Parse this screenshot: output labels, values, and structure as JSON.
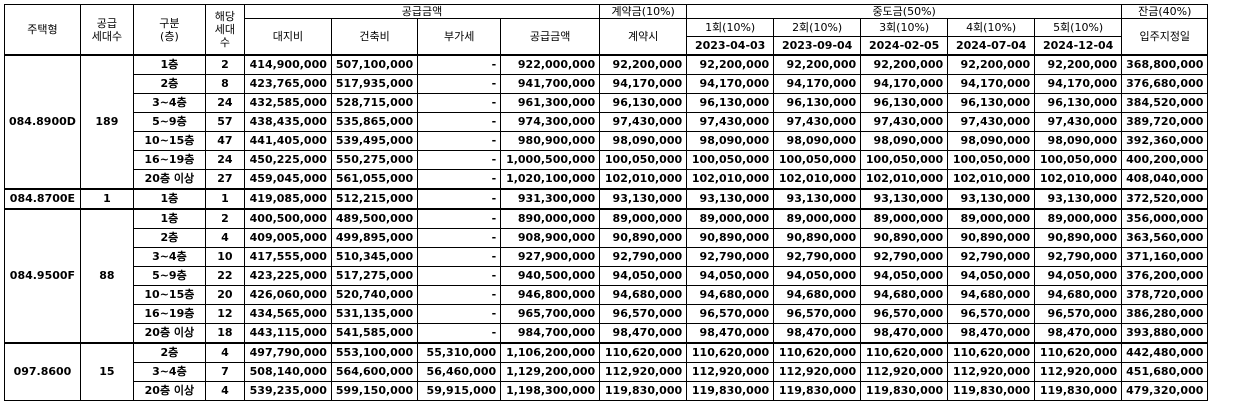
{
  "headers": {
    "type": "주택형",
    "units_line1": "공급",
    "units_line2": "세대수",
    "floor_line1": "구분",
    "floor_line2": "(층)",
    "count_line1": "해당",
    "count_line2": "세대수",
    "supply_group": "공급금액",
    "land": "대지비",
    "building": "건축비",
    "vat": "부가세",
    "supply_total": "공급금액",
    "deposit_group": "계약금(10%)",
    "deposit_at_contract": "계약시",
    "interim_group": "중도금(50%)",
    "interim": [
      {
        "label": "1회(10%)",
        "date": "2023-04-03"
      },
      {
        "label": "2회(10%)",
        "date": "2023-09-04"
      },
      {
        "label": "3회(10%)",
        "date": "2024-02-05"
      },
      {
        "label": "4회(10%)",
        "date": "2024-07-04"
      },
      {
        "label": "5회(10%)",
        "date": "2024-12-04"
      }
    ],
    "balance_group": "잔금(40%)",
    "balance_due": "입주지정일"
  },
  "groups": [
    {
      "type": "084.8900D",
      "units": "189",
      "rows": [
        {
          "floor": "1층",
          "count": "2",
          "land": "414,900,000",
          "building": "507,100,000",
          "vat": "-",
          "total": "922,000,000",
          "deposit": "92,200,000",
          "interim": [
            "92,200,000",
            "92,200,000",
            "92,200,000",
            "92,200,000",
            "92,200,000"
          ],
          "balance": "368,800,000"
        },
        {
          "floor": "2층",
          "count": "8",
          "land": "423,765,000",
          "building": "517,935,000",
          "vat": "-",
          "total": "941,700,000",
          "deposit": "94,170,000",
          "interim": [
            "94,170,000",
            "94,170,000",
            "94,170,000",
            "94,170,000",
            "94,170,000"
          ],
          "balance": "376,680,000"
        },
        {
          "floor": "3~4층",
          "count": "24",
          "land": "432,585,000",
          "building": "528,715,000",
          "vat": "-",
          "total": "961,300,000",
          "deposit": "96,130,000",
          "interim": [
            "96,130,000",
            "96,130,000",
            "96,130,000",
            "96,130,000",
            "96,130,000"
          ],
          "balance": "384,520,000"
        },
        {
          "floor": "5~9층",
          "count": "57",
          "land": "438,435,000",
          "building": "535,865,000",
          "vat": "-",
          "total": "974,300,000",
          "deposit": "97,430,000",
          "interim": [
            "97,430,000",
            "97,430,000",
            "97,430,000",
            "97,430,000",
            "97,430,000"
          ],
          "balance": "389,720,000"
        },
        {
          "floor": "10~15층",
          "count": "47",
          "land": "441,405,000",
          "building": "539,495,000",
          "vat": "-",
          "total": "980,900,000",
          "deposit": "98,090,000",
          "interim": [
            "98,090,000",
            "98,090,000",
            "98,090,000",
            "98,090,000",
            "98,090,000"
          ],
          "balance": "392,360,000"
        },
        {
          "floor": "16~19층",
          "count": "24",
          "land": "450,225,000",
          "building": "550,275,000",
          "vat": "-",
          "total": "1,000,500,000",
          "deposit": "100,050,000",
          "interim": [
            "100,050,000",
            "100,050,000",
            "100,050,000",
            "100,050,000",
            "100,050,000"
          ],
          "balance": "400,200,000"
        },
        {
          "floor": "20층 이상",
          "count": "27",
          "land": "459,045,000",
          "building": "561,055,000",
          "vat": "-",
          "total": "1,020,100,000",
          "deposit": "102,010,000",
          "interim": [
            "102,010,000",
            "102,010,000",
            "102,010,000",
            "102,010,000",
            "102,010,000"
          ],
          "balance": "408,040,000"
        }
      ]
    },
    {
      "type": "084.8700E",
      "units": "1",
      "rows": [
        {
          "floor": "1층",
          "count": "1",
          "land": "419,085,000",
          "building": "512,215,000",
          "vat": "-",
          "total": "931,300,000",
          "deposit": "93,130,000",
          "interim": [
            "93,130,000",
            "93,130,000",
            "93,130,000",
            "93,130,000",
            "93,130,000"
          ],
          "balance": "372,520,000"
        }
      ]
    },
    {
      "type": "084.9500F",
      "units": "88",
      "rows": [
        {
          "floor": "1층",
          "count": "2",
          "land": "400,500,000",
          "building": "489,500,000",
          "vat": "-",
          "total": "890,000,000",
          "deposit": "89,000,000",
          "interim": [
            "89,000,000",
            "89,000,000",
            "89,000,000",
            "89,000,000",
            "89,000,000"
          ],
          "balance": "356,000,000"
        },
        {
          "floor": "2층",
          "count": "4",
          "land": "409,005,000",
          "building": "499,895,000",
          "vat": "-",
          "total": "908,900,000",
          "deposit": "90,890,000",
          "interim": [
            "90,890,000",
            "90,890,000",
            "90,890,000",
            "90,890,000",
            "90,890,000"
          ],
          "balance": "363,560,000"
        },
        {
          "floor": "3~4층",
          "count": "10",
          "land": "417,555,000",
          "building": "510,345,000",
          "vat": "-",
          "total": "927,900,000",
          "deposit": "92,790,000",
          "interim": [
            "92,790,000",
            "92,790,000",
            "92,790,000",
            "92,790,000",
            "92,790,000"
          ],
          "balance": "371,160,000"
        },
        {
          "floor": "5~9층",
          "count": "22",
          "land": "423,225,000",
          "building": "517,275,000",
          "vat": "-",
          "total": "940,500,000",
          "deposit": "94,050,000",
          "interim": [
            "94,050,000",
            "94,050,000",
            "94,050,000",
            "94,050,000",
            "94,050,000"
          ],
          "balance": "376,200,000"
        },
        {
          "floor": "10~15층",
          "count": "20",
          "land": "426,060,000",
          "building": "520,740,000",
          "vat": "-",
          "total": "946,800,000",
          "deposit": "94,680,000",
          "interim": [
            "94,680,000",
            "94,680,000",
            "94,680,000",
            "94,680,000",
            "94,680,000"
          ],
          "balance": "378,720,000"
        },
        {
          "floor": "16~19층",
          "count": "12",
          "land": "434,565,000",
          "building": "531,135,000",
          "vat": "-",
          "total": "965,700,000",
          "deposit": "96,570,000",
          "interim": [
            "96,570,000",
            "96,570,000",
            "96,570,000",
            "96,570,000",
            "96,570,000"
          ],
          "balance": "386,280,000"
        },
        {
          "floor": "20층 이상",
          "count": "18",
          "land": "443,115,000",
          "building": "541,585,000",
          "vat": "-",
          "total": "984,700,000",
          "deposit": "98,470,000",
          "interim": [
            "98,470,000",
            "98,470,000",
            "98,470,000",
            "98,470,000",
            "98,470,000"
          ],
          "balance": "393,880,000"
        }
      ]
    },
    {
      "type": "097.8600",
      "units": "15",
      "rows": [
        {
          "floor": "2층",
          "count": "4",
          "land": "497,790,000",
          "building": "553,100,000",
          "vat": "55,310,000",
          "total": "1,106,200,000",
          "deposit": "110,620,000",
          "interim": [
            "110,620,000",
            "110,620,000",
            "110,620,000",
            "110,620,000",
            "110,620,000"
          ],
          "balance": "442,480,000"
        },
        {
          "floor": "3~4층",
          "count": "7",
          "land": "508,140,000",
          "building": "564,600,000",
          "vat": "56,460,000",
          "total": "1,129,200,000",
          "deposit": "112,920,000",
          "interim": [
            "112,920,000",
            "112,920,000",
            "112,920,000",
            "112,920,000",
            "112,920,000"
          ],
          "balance": "451,680,000"
        },
        {
          "floor": "20층 이상",
          "count": "4",
          "land": "539,235,000",
          "building": "599,150,000",
          "vat": "59,915,000",
          "total": "1,198,300,000",
          "deposit": "119,830,000",
          "interim": [
            "119,830,000",
            "119,830,000",
            "119,830,000",
            "119,830,000",
            "119,830,000"
          ],
          "balance": "479,320,000"
        }
      ]
    }
  ]
}
